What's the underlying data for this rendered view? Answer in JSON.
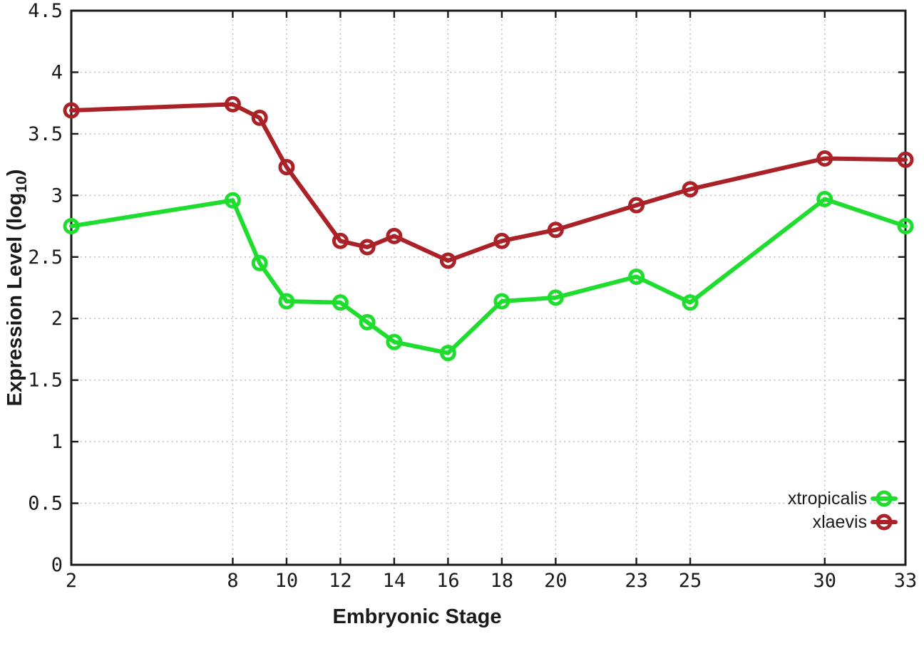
{
  "figure": {
    "background": "#ffffff",
    "border_color": "#1a1a1a",
    "grid_color": "#b3b3b3",
    "text_color": "#1a1a1a"
  },
  "chart_data": {
    "type": "line",
    "title": "",
    "xlabel": "Embryonic Stage",
    "ylabel": "Expression Level (log10)",
    "ylabel_parts": {
      "text": "Expression Level (log",
      "sub": "10",
      "suffix": ")"
    },
    "xlim": [
      2,
      33
    ],
    "ylim": [
      0,
      4.5
    ],
    "grid": "dotted gridlines at all major x and y ticks, box border with mirrored inward ticks",
    "legend_position": "inside bottom-right",
    "x_ticks": [
      {
        "v": 2,
        "label": "2"
      },
      {
        "v": 8,
        "label": "8"
      },
      {
        "v": 10,
        "label": "10"
      },
      {
        "v": 12,
        "label": "12"
      },
      {
        "v": 14,
        "label": "14"
      },
      {
        "v": 16,
        "label": "16"
      },
      {
        "v": 18,
        "label": "18"
      },
      {
        "v": 20,
        "label": "20"
      },
      {
        "v": 23,
        "label": "23"
      },
      {
        "v": 25,
        "label": "25"
      },
      {
        "v": 30,
        "label": "30"
      },
      {
        "v": 33,
        "label": "33"
      }
    ],
    "y_ticks": [
      {
        "v": 0,
        "label": "0"
      },
      {
        "v": 0.5,
        "label": "0.5"
      },
      {
        "v": 1,
        "label": "1"
      },
      {
        "v": 1.5,
        "label": "1.5"
      },
      {
        "v": 2,
        "label": "2"
      },
      {
        "v": 2.5,
        "label": "2.5"
      },
      {
        "v": 3,
        "label": "3"
      },
      {
        "v": 3.5,
        "label": "3.5"
      },
      {
        "v": 4,
        "label": "4"
      },
      {
        "v": 4.5,
        "label": "4.5"
      }
    ],
    "x": [
      2,
      8,
      9,
      10,
      12,
      13,
      14,
      16,
      18,
      20,
      23,
      25,
      30,
      33
    ],
    "series": [
      {
        "name": "xtropicalis",
        "color": "#1fdd2e",
        "marker": "open-circle",
        "values": [
          2.75,
          2.96,
          2.45,
          2.14,
          2.13,
          1.97,
          1.81,
          1.72,
          2.14,
          2.17,
          2.34,
          2.13,
          2.97,
          2.75
        ]
      },
      {
        "name": "xlaevis",
        "color": "#aa2228",
        "marker": "open-circle",
        "values": [
          3.69,
          3.74,
          3.63,
          3.23,
          2.63,
          2.58,
          2.67,
          2.47,
          2.63,
          2.72,
          2.92,
          3.05,
          3.3,
          3.29
        ]
      }
    ]
  }
}
